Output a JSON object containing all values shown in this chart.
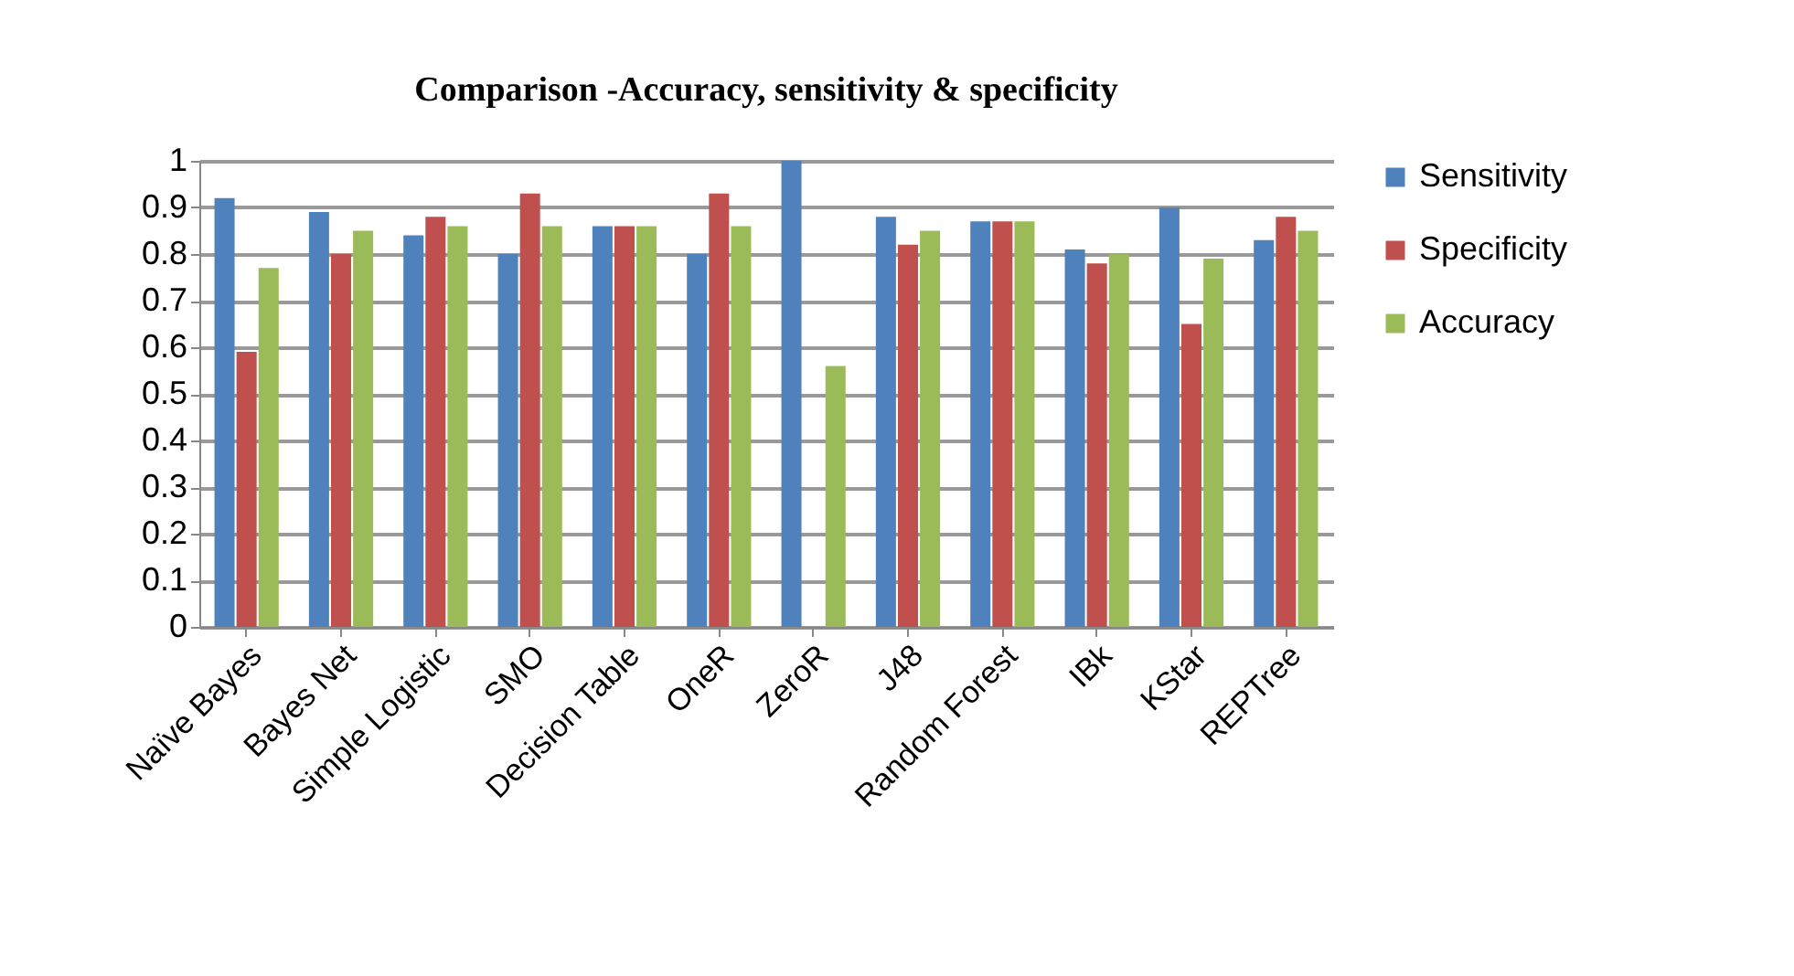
{
  "chart_data": {
    "type": "bar",
    "title": "Comparison -Accuracy, sensitivity & specificity",
    "categories": [
      "Naïve Bayes",
      "Bayes Net",
      "Simple Logistic",
      "SMO",
      "Decision Table",
      "OneR",
      "ZeroR",
      "J48",
      "Random Forest",
      "IBk",
      "KStar",
      "REPTree"
    ],
    "series": [
      {
        "name": "Sensitivity",
        "color": "#4f81bd",
        "values": [
          0.92,
          0.89,
          0.84,
          0.8,
          0.86,
          0.8,
          1.0,
          0.88,
          0.87,
          0.81,
          0.9,
          0.83
        ]
      },
      {
        "name": "Specificity",
        "color": "#c0504d",
        "values": [
          0.59,
          0.8,
          0.88,
          0.93,
          0.86,
          0.93,
          0,
          0.82,
          0.87,
          0.78,
          0.65,
          0.88
        ]
      },
      {
        "name": "Accuracy",
        "color": "#9bbb59",
        "values": [
          0.77,
          0.85,
          0.86,
          0.86,
          0.86,
          0.86,
          0.56,
          0.85,
          0.87,
          0.8,
          0.79,
          0.85
        ]
      }
    ],
    "ylim": [
      0,
      1
    ],
    "yticks": [
      0,
      0.1,
      0.2,
      0.3,
      0.4,
      0.5,
      0.6,
      0.7,
      0.8,
      0.9,
      1
    ],
    "grid": "y",
    "legend": "right"
  }
}
